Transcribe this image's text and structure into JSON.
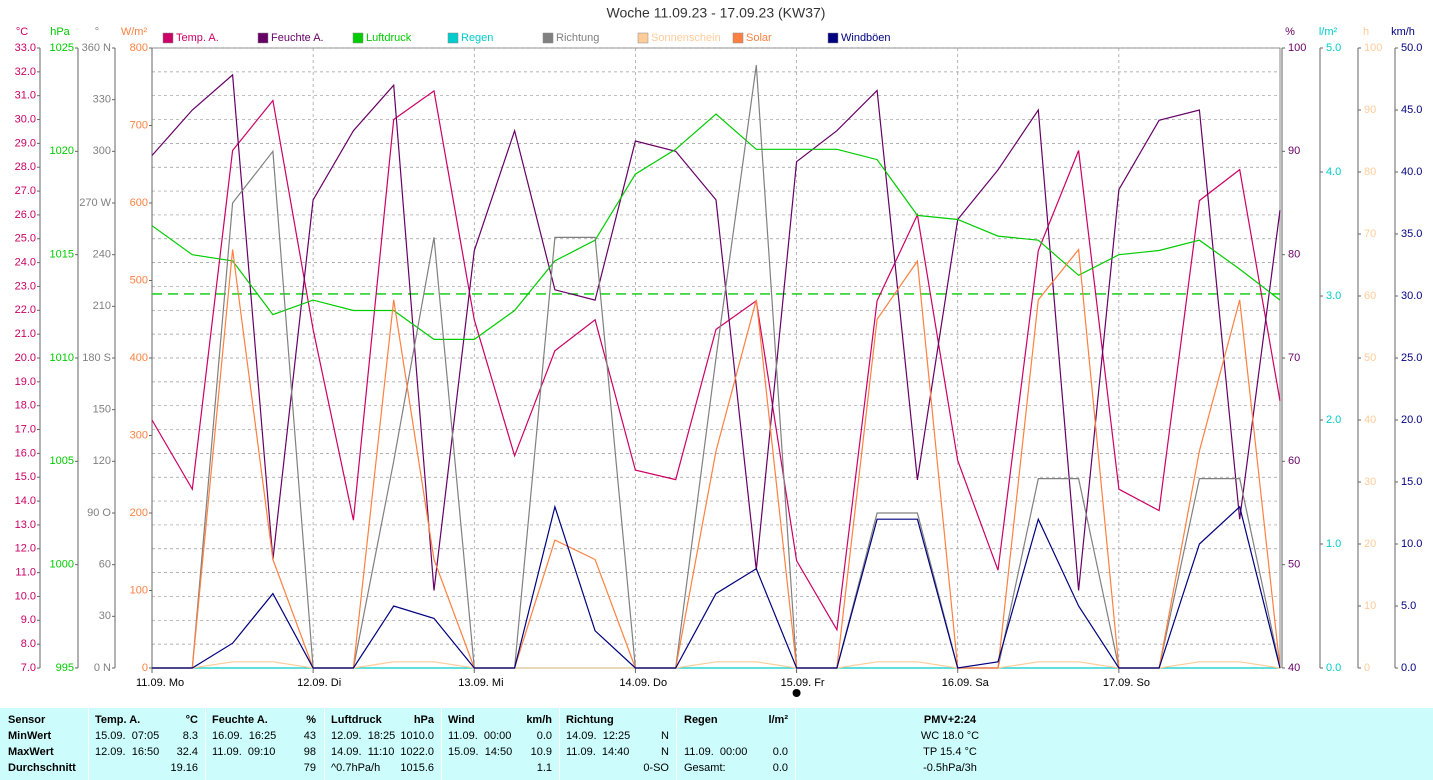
{
  "chart_data": {
    "type": "line",
    "title": "Woche 11.09.23 - 17.09.23 (KW37)",
    "x": [
      0,
      0.25,
      0.5,
      0.75,
      1,
      1.25,
      1.5,
      1.75,
      2,
      2.25,
      2.5,
      2.75,
      3,
      3.25,
      3.5,
      3.75,
      4,
      4.25,
      4.5,
      4.75,
      5,
      5.25,
      5.5,
      5.75,
      6,
      6.25,
      6.5,
      6.75,
      7
    ],
    "xlim": [
      0,
      7
    ],
    "xticks": [
      {
        "value": 0,
        "label": "11.09. Mo"
      },
      {
        "value": 1,
        "label": "12.09. Di"
      },
      {
        "value": 2,
        "label": "13.09. Mi"
      },
      {
        "value": 3,
        "label": "14.09. Do"
      },
      {
        "value": 4,
        "label": "15.09. Fr"
      },
      {
        "value": 5,
        "label": "16.09. Sa"
      },
      {
        "value": 6,
        "label": "17.09. So"
      }
    ],
    "axes": [
      {
        "label": "°C",
        "side": "left",
        "color": "#cc0066",
        "grid": true,
        "lim": [
          7,
          33
        ],
        "ticks": [
          {
            "value": 7,
            "label": "7.0"
          },
          {
            "value": 8,
            "label": "8.0"
          },
          {
            "value": 9,
            "label": "9.0"
          },
          {
            "value": 10,
            "label": "10.0"
          },
          {
            "value": 11,
            "label": "11.0"
          },
          {
            "value": 12,
            "label": "12.0"
          },
          {
            "value": 13,
            "label": "13.0"
          },
          {
            "value": 14,
            "label": "14.0"
          },
          {
            "value": 15,
            "label": "15.0"
          },
          {
            "value": 16,
            "label": "16.0"
          },
          {
            "value": 17,
            "label": "17.0"
          },
          {
            "value": 18,
            "label": "18.0"
          },
          {
            "value": 19,
            "label": "19.0"
          },
          {
            "value": 20,
            "label": "20.0"
          },
          {
            "value": 21,
            "label": "21.0"
          },
          {
            "value": 22,
            "label": "22.0"
          },
          {
            "value": 23,
            "label": "23.0"
          },
          {
            "value": 24,
            "label": "24.0"
          },
          {
            "value": 25,
            "label": "25.0"
          },
          {
            "value": 26,
            "label": "26.0"
          },
          {
            "value": 27,
            "label": "27.0"
          },
          {
            "value": 28,
            "label": "28.0"
          },
          {
            "value": 29,
            "label": "29.0"
          },
          {
            "value": 30,
            "label": "30.0"
          },
          {
            "value": 31,
            "label": "31.0"
          },
          {
            "value": 32,
            "label": "32.0"
          },
          {
            "value": 33,
            "label": "33.0"
          }
        ]
      },
      {
        "label": "hPa",
        "side": "left",
        "color": "#00cc00",
        "grid": false,
        "lim": [
          995,
          1025
        ],
        "ticks": [
          995,
          1000,
          1005,
          1010,
          1015,
          1020,
          1025
        ]
      },
      {
        "label": "°",
        "side": "left",
        "color": "#808080",
        "grid": false,
        "lim": [
          0,
          360
        ],
        "ticks": [
          {
            "value": 0,
            "label": "0 N"
          },
          30,
          60,
          {
            "value": 90,
            "label": "90 O"
          },
          120,
          150,
          {
            "value": 180,
            "label": "180 S"
          },
          210,
          240,
          {
            "value": 270,
            "label": "270 W"
          },
          300,
          330,
          {
            "value": 360,
            "label": "360 N"
          }
        ]
      },
      {
        "label": "W/m²",
        "side": "left",
        "color": "#ff8040",
        "grid": false,
        "lim": [
          0,
          800
        ],
        "ticks": [
          0,
          100,
          200,
          300,
          400,
          500,
          600,
          700,
          800
        ]
      },
      {
        "label": "%",
        "side": "right",
        "color": "#660066",
        "grid": false,
        "lim": [
          40,
          100
        ],
        "ticks": [
          40,
          50,
          60,
          70,
          80,
          90,
          100
        ]
      },
      {
        "label": "l/m²",
        "side": "right",
        "color": "#00cccc",
        "grid": false,
        "lim": [
          0,
          5
        ],
        "ticks": [
          {
            "value": 0,
            "label": "0.0"
          },
          {
            "value": 1,
            "label": "1.0"
          },
          {
            "value": 2,
            "label": "2.0"
          },
          {
            "value": 3,
            "label": "3.0"
          },
          {
            "value": 4,
            "label": "4.0"
          },
          {
            "value": 5,
            "label": "5.0"
          }
        ]
      },
      {
        "label": "h",
        "side": "right",
        "color": "#ffcc99",
        "grid": false,
        "lim": [
          0,
          100
        ],
        "ticks": [
          0,
          10,
          20,
          30,
          40,
          50,
          60,
          70,
          80,
          90,
          100
        ]
      },
      {
        "label": "km/h",
        "side": "right",
        "color": "#000080",
        "grid": false,
        "lim": [
          0,
          50
        ],
        "ticks": [
          {
            "value": 0,
            "label": "0.0"
          },
          {
            "value": 5,
            "label": "5.0"
          },
          {
            "value": 10,
            "label": "10.0"
          },
          {
            "value": 15,
            "label": "15.0"
          },
          {
            "value": 20,
            "label": "20.0"
          },
          {
            "value": 25,
            "label": "25.0"
          },
          {
            "value": 30,
            "label": "30.0"
          },
          {
            "value": 35,
            "label": "35.0"
          },
          {
            "value": 40,
            "label": "40.0"
          },
          {
            "value": 45,
            "label": "45.0"
          },
          {
            "value": 50,
            "label": "50.0"
          }
        ]
      }
    ],
    "reference_line": {
      "axis": 1,
      "value": 1013.1,
      "color": "#00cc00"
    },
    "series": [
      {
        "name": "Temp. A.",
        "color": "#cc0066",
        "axis": 0,
        "values": [
          17.4,
          14.5,
          28.7,
          30.8,
          21.2,
          13.2,
          30,
          31.2,
          21.6,
          15.9,
          20.3,
          21.6,
          15.3,
          14.9,
          21.2,
          22.4,
          11.5,
          8.6,
          22.4,
          26,
          15.7,
          11.1,
          24.5,
          28.7,
          14.5,
          13.6,
          26.6,
          27.9,
          18.2
        ]
      },
      {
        "name": "Feuchte A.",
        "color": "#660066",
        "axis": 4,
        "values": [
          89.6,
          94,
          97.4,
          50.5,
          85.3,
          92,
          96.4,
          47.5,
          80.4,
          92,
          76.6,
          75.6,
          91,
          90,
          85.3,
          49.5,
          89,
          92,
          95.9,
          58.2,
          83.4,
          88.2,
          94,
          47.5,
          86.3,
          93,
          94,
          54.4,
          84.3
        ]
      },
      {
        "name": "Luftdruck",
        "color": "#00cc00",
        "axis": 1,
        "values": [
          1016.4,
          1015,
          1014.7,
          1012.1,
          1012.8,
          1012.3,
          1012.3,
          1010.9,
          1010.9,
          1012.3,
          1014.7,
          1015.7,
          1018.9,
          1020.1,
          1021.8,
          1020.1,
          1020.1,
          1020.1,
          1019.6,
          1016.9,
          1016.7,
          1015.9,
          1015.7,
          1014,
          1015,
          1015.2,
          1015.7,
          1014.3,
          1012.8
        ]
      },
      {
        "name": "Regen",
        "color": "#00cccc",
        "axis": 5,
        "values": [
          0,
          0,
          0,
          0,
          0,
          0,
          0,
          0,
          0,
          0,
          0,
          0,
          0,
          0,
          0,
          0,
          0,
          0,
          0,
          0,
          0,
          0,
          0,
          0,
          0,
          0,
          0,
          0,
          0
        ]
      },
      {
        "name": "Richtung",
        "color": "#808080",
        "axis": 2,
        "values": [
          0,
          0,
          270,
          300,
          0,
          0,
          120,
          250,
          0,
          0,
          250,
          250,
          0,
          0,
          180,
          350,
          0,
          0,
          90,
          90,
          0,
          0,
          110,
          110,
          0,
          0,
          110,
          110,
          0
        ]
      },
      {
        "name": "Sonnenschein",
        "color": "#ffcc99",
        "axis": 6,
        "values": [
          0,
          0,
          1,
          1,
          0,
          0,
          1,
          1,
          0,
          0,
          0,
          0,
          0,
          0,
          1,
          1,
          0,
          0,
          1,
          1,
          0,
          0,
          1,
          1,
          0,
          0,
          1,
          1,
          0
        ]
      },
      {
        "name": "Solar",
        "color": "#ff8040",
        "axis": 3,
        "values": [
          0,
          0,
          540,
          140,
          0,
          0,
          475,
          140,
          0,
          0,
          165,
          140,
          0,
          0,
          280,
          475,
          0,
          0,
          450,
          525,
          0,
          0,
          475,
          540,
          0,
          0,
          280,
          475,
          0
        ]
      },
      {
        "name": "Windböen",
        "color": "#000080",
        "axis": 7,
        "values": [
          0,
          0,
          2,
          6,
          0,
          0,
          5,
          4,
          0,
          0,
          13,
          3,
          0,
          0,
          6,
          8,
          0,
          0,
          12,
          12,
          0,
          0.5,
          12,
          5,
          0,
          0,
          10,
          13,
          0
        ]
      }
    ]
  },
  "table": {
    "rows": [
      [
        "Sensor",
        "Temp. A.",
        "°C",
        "Feuchte A.",
        "%",
        "Luftdruck",
        "hPa",
        "Wind",
        "km/h",
        "Richtung",
        null,
        "Regen",
        "l/m²",
        "PMV+2:24"
      ],
      [
        "MinWert",
        "15.09.  07:05",
        "8.3",
        "16.09.  16:25",
        "43",
        "12.09.  18:25",
        "1010.0",
        "11.09.  00:00",
        "0.0",
        "14.09.  12:25",
        "N",
        null,
        null,
        "WC 18.0 °C"
      ],
      [
        "MaxWert",
        "12.09.  16:50",
        "32.4",
        "11.09.  09:10",
        "98",
        "14.09.  11:10",
        "1022.0",
        "15.09.  14:50",
        "10.9",
        "11.09.  14:40",
        "N",
        "11.09.  00:00",
        "0.0",
        "TP 15.4 °C"
      ],
      [
        "Durchschnitt",
        null,
        "19.16",
        null,
        "79",
        "^0.7hPa/h",
        "1015.6",
        null,
        "1.1",
        null,
        "0-SO",
        "Gesamt:",
        "0.0",
        "-0.5hPa/3h"
      ]
    ]
  }
}
